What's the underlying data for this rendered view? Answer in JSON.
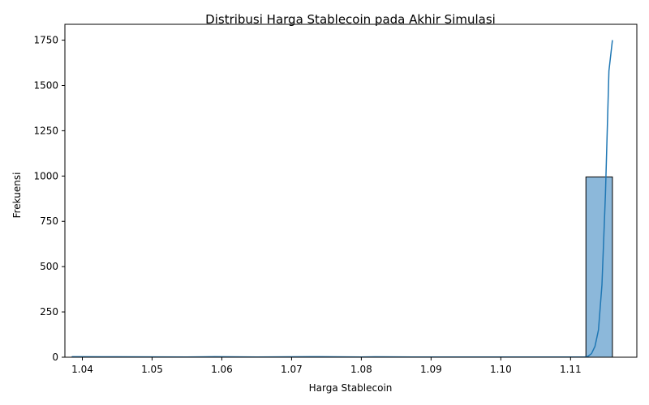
{
  "chart_data": {
    "type": "bar",
    "title": "Distribusi Harga Stablecoin pada Akhir Simulasi",
    "xlabel": "Harga Stablecoin",
    "ylabel": "Frekuensi",
    "xlim": [
      1.0375,
      1.1195
    ],
    "ylim": [
      0,
      1837.5
    ],
    "xticks": [
      1.04,
      1.05,
      1.06,
      1.07,
      1.08,
      1.09,
      1.1,
      1.11
    ],
    "xtick_labels": [
      "1.04",
      "1.05",
      "1.06",
      "1.07",
      "1.08",
      "1.09",
      "1.10",
      "1.11"
    ],
    "yticks": [
      0,
      250,
      500,
      750,
      1000,
      1250,
      1500,
      1750
    ],
    "ytick_labels": [
      "0",
      "250",
      "500",
      "750",
      "1000",
      "1250",
      "1500",
      "1750"
    ],
    "grid": false,
    "bars": [
      {
        "x0": 1.1122,
        "x1": 1.116,
        "value": 995
      },
      {
        "x0": 1.0385,
        "x1": 1.0423,
        "value": 1
      },
      {
        "x0": 1.0575,
        "x1": 1.0613,
        "value": 1
      },
      {
        "x0": 1.0727,
        "x1": 1.0765,
        "value": 1
      },
      {
        "x0": 1.0803,
        "x1": 1.0841,
        "value": 1
      }
    ],
    "kde_line": {
      "x": [
        1.0385,
        1.045,
        1.055,
        1.059,
        1.065,
        1.074,
        1.08,
        1.082,
        1.09,
        1.1,
        1.108,
        1.111,
        1.112,
        1.1125,
        1.113,
        1.1135,
        1.114,
        1.1145,
        1.115,
        1.1155,
        1.116
      ],
      "y": [
        3,
        2,
        1,
        3,
        1,
        3,
        1,
        2,
        1,
        1,
        1,
        1,
        1,
        5,
        20,
        60,
        150,
        400,
        900,
        1580,
        1750
      ]
    },
    "colors": {
      "bar_fill": "#8cb8da",
      "bar_edge": "#000000",
      "line": "#1f77b4"
    }
  }
}
